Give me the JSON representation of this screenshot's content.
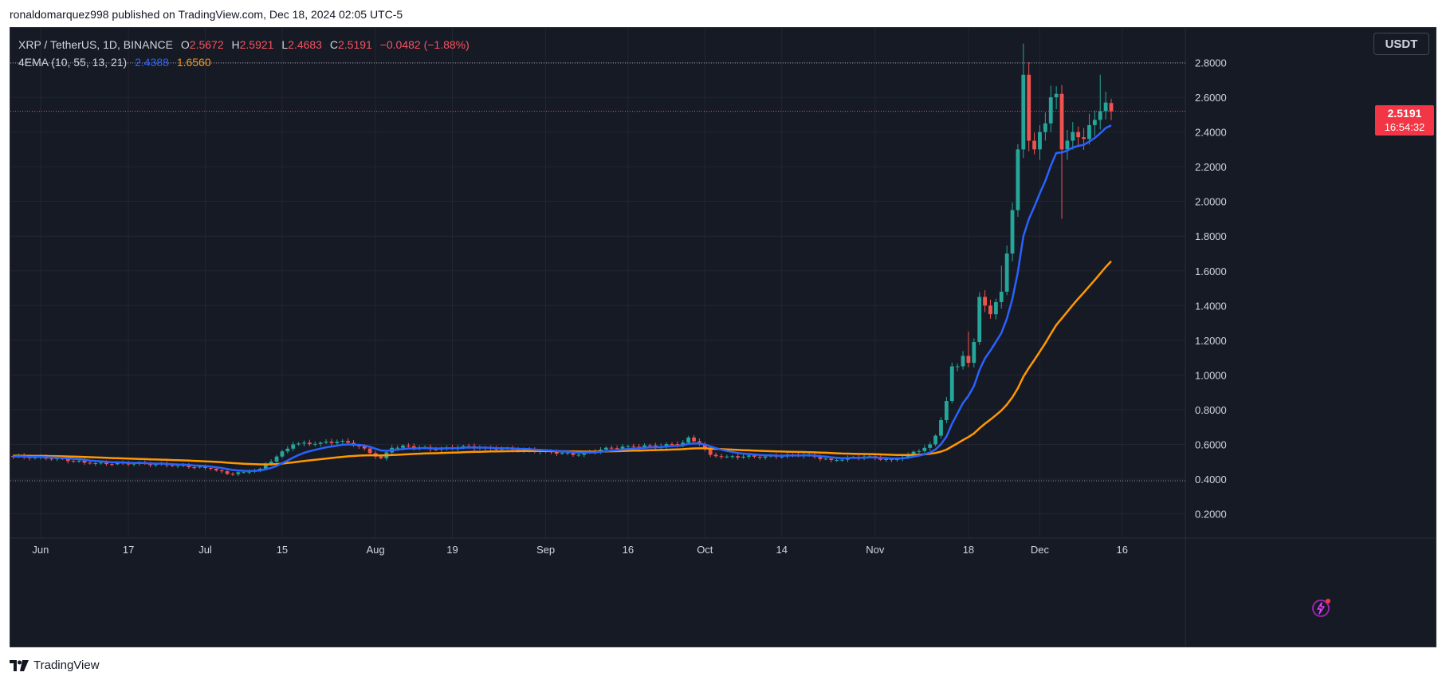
{
  "header": {
    "published_text": "ronaldomarquez998 published on TradingView.com, Dec 18, 2024 02:05 UTC-5"
  },
  "legend": {
    "symbol": "XRP / TetherUS, 1D, BINANCE",
    "open_label": "O",
    "open": "2.5672",
    "high_label": "H",
    "high": "2.5921",
    "low_label": "L",
    "low": "2.4683",
    "close_label": "C",
    "close": "2.5191",
    "change": "−0.0482 (−1.88%)",
    "indicator": "4EMA (10, 55, 13, 21)",
    "ema_fast_value": "2.4388",
    "ema_slow_value": "1.6560"
  },
  "currency_button": "USDT",
  "last_price": {
    "value": "2.5191",
    "countdown": "16:54:32"
  },
  "footer": {
    "brand": "TradingView"
  },
  "colors": {
    "background": "#161a25",
    "grid": "#232632",
    "up": "#26a69a",
    "down": "#ef5350",
    "ema_fast": "#2962ff",
    "ema_slow": "#ff9800",
    "axis_text": "#d1d4dc",
    "price_tag": "#f23645",
    "crosshair_dotted": "#9598a1"
  },
  "chart_data": {
    "type": "candlestick",
    "symbol": "XRP / TetherUS",
    "interval": "1D",
    "exchange": "BINANCE",
    "y_ticks": [
      0.2,
      0.4,
      0.6,
      0.8,
      1.0,
      1.2,
      1.4,
      1.6,
      1.8,
      2.0,
      2.2,
      2.4,
      2.6,
      2.8
    ],
    "y_tick_labels": [
      "0.2000",
      "0.4000",
      "0.6000",
      "0.8000",
      "1.0000",
      "1.2000",
      "1.4000",
      "1.6000",
      "1.8000",
      "2.0000",
      "2.2000",
      "2.4000",
      "2.6000",
      "2.8000"
    ],
    "ylim": [
      0.06,
      3.0
    ],
    "x_ticks": [
      {
        "index": 5,
        "label": "Jun"
      },
      {
        "index": 21,
        "label": "17"
      },
      {
        "index": 35,
        "label": "Jul"
      },
      {
        "index": 49,
        "label": "15"
      },
      {
        "index": 66,
        "label": "Aug"
      },
      {
        "index": 80,
        "label": "19"
      },
      {
        "index": 97,
        "label": "Sep"
      },
      {
        "index": 112,
        "label": "16"
      },
      {
        "index": 126,
        "label": "Oct"
      },
      {
        "index": 140,
        "label": "14"
      },
      {
        "index": 157,
        "label": "Nov"
      },
      {
        "index": 174,
        "label": "18"
      },
      {
        "index": 187,
        "label": "Dec"
      },
      {
        "index": 202,
        "label": "16"
      }
    ],
    "slot_count": 214,
    "anchor_closes": [
      [
        0,
        0.53
      ],
      [
        8,
        0.52
      ],
      [
        14,
        0.49
      ],
      [
        22,
        0.49
      ],
      [
        30,
        0.48
      ],
      [
        36,
        0.46
      ],
      [
        39,
        0.43
      ],
      [
        42,
        0.44
      ],
      [
        45,
        0.46
      ],
      [
        48,
        0.53
      ],
      [
        51,
        0.6
      ],
      [
        56,
        0.61
      ],
      [
        60,
        0.62
      ],
      [
        63,
        0.59
      ],
      [
        65,
        0.55
      ],
      [
        67,
        0.52
      ],
      [
        69,
        0.58
      ],
      [
        72,
        0.59
      ],
      [
        77,
        0.57
      ],
      [
        82,
        0.59
      ],
      [
        86,
        0.58
      ],
      [
        91,
        0.57
      ],
      [
        97,
        0.56
      ],
      [
        103,
        0.54
      ],
      [
        107,
        0.57
      ],
      [
        112,
        0.59
      ],
      [
        118,
        0.59
      ],
      [
        122,
        0.61
      ],
      [
        123,
        0.64
      ],
      [
        125,
        0.6
      ],
      [
        127,
        0.54
      ],
      [
        130,
        0.53
      ],
      [
        137,
        0.53
      ],
      [
        144,
        0.54
      ],
      [
        149,
        0.51
      ],
      [
        155,
        0.53
      ],
      [
        160,
        0.51
      ],
      [
        163,
        0.54
      ],
      [
        166,
        0.58
      ],
      [
        167,
        0.6
      ],
      [
        168,
        0.65
      ],
      [
        169,
        0.74
      ],
      [
        170,
        0.85
      ],
      [
        171,
        1.05
      ],
      [
        172,
        1.05
      ],
      [
        173,
        1.11
      ],
      [
        174,
        1.07
      ],
      [
        175,
        1.19
      ],
      [
        176,
        1.45
      ],
      [
        177,
        1.4
      ],
      [
        178,
        1.35
      ],
      [
        179,
        1.42
      ],
      [
        180,
        1.48
      ],
      [
        181,
        1.7
      ],
      [
        182,
        1.95
      ],
      [
        183,
        2.3
      ],
      [
        184,
        2.73
      ],
      [
        185,
        2.35
      ],
      [
        186,
        2.3
      ],
      [
        187,
        2.4
      ],
      [
        188,
        2.45
      ],
      [
        189,
        2.6
      ],
      [
        190,
        2.62
      ],
      [
        191,
        2.3
      ],
      [
        192,
        2.35
      ],
      [
        193,
        2.4
      ],
      [
        194,
        2.37
      ],
      [
        195,
        2.36
      ],
      [
        196,
        2.44
      ],
      [
        197,
        2.47
      ],
      [
        198,
        2.52
      ],
      [
        199,
        2.57
      ],
      [
        200,
        2.52
      ]
    ],
    "spikes": [
      {
        "index": 174,
        "high": 1.25
      },
      {
        "index": 180,
        "high": 1.63
      },
      {
        "index": 184,
        "high": 2.91
      },
      {
        "index": 191,
        "low": 1.9
      },
      {
        "index": 198,
        "high": 2.73
      }
    ],
    "ema_fast": {
      "name": "EMA 10",
      "last": 2.4388
    },
    "ema_slow": {
      "name": "EMA 55",
      "last": 1.656
    },
    "last_close": 2.5191,
    "last_open": 2.5672,
    "last_high": 2.5921,
    "last_low": 2.4683
  }
}
